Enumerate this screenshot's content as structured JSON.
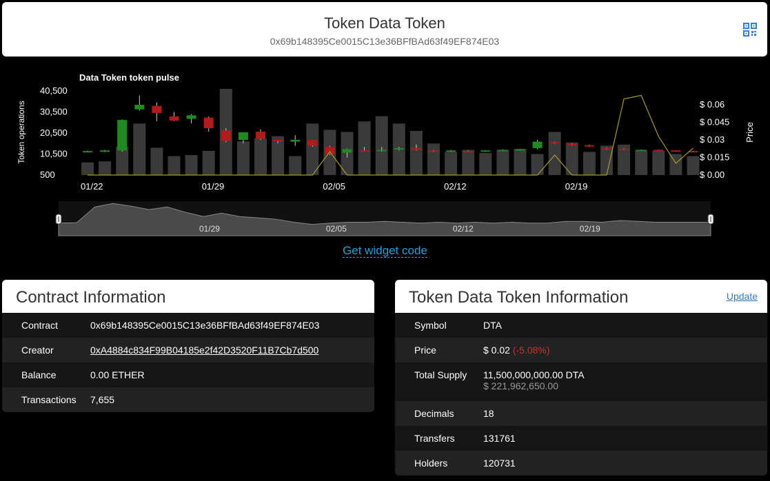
{
  "header": {
    "title": "Token Data Token",
    "address": "0x69b148395Ce0015C13e36BFfBAd63f49EF874E03"
  },
  "widget_link": "Get widget code",
  "contract_panel": {
    "title": "Contract Information",
    "rows": [
      {
        "label": "Contract",
        "value": "0x69b148395Ce0015C13e36BFfBAd63f49EF874E03"
      },
      {
        "label": "Creator",
        "value": "0xA4884c834F99B04185e2f42D3520F11B7Cb7d500"
      },
      {
        "label": "Balance",
        "value": "0.00 ETHER"
      },
      {
        "label": "Transactions",
        "value": "7,655"
      }
    ]
  },
  "token_panel": {
    "title": "Token Data Token Information",
    "update_label": "Update",
    "symbol_label": "Symbol",
    "symbol": "DTA",
    "price_label": "Price",
    "price": "$ 0.02",
    "price_change": "(-5.08%)",
    "supply_label": "Total Supply",
    "supply": "11,500,000,000.00 DTA",
    "supply_usd": "$ 221,962,650.00",
    "decimals_label": "Decimals",
    "decimals": "18",
    "transfers_label": "Transfers",
    "transfers": "131761",
    "holders_label": "Holders",
    "holders": "120731"
  },
  "colors": {
    "up": "#1f8a1f",
    "down": "#b31b1b",
    "volume": "#3a3a3a",
    "price_line": "#a89a2c",
    "link": "#2a9fd6"
  },
  "chart_data": {
    "type": "bar",
    "title": "Data Token token pulse",
    "ylabel": "Token operations",
    "y2label": "Price",
    "ylim": [
      500,
      40500
    ],
    "y_ticks": [
      "40,500",
      "30,500",
      "20,500",
      "10,500",
      "500"
    ],
    "y2lim": [
      0,
      0.07
    ],
    "y2_ticks": [
      "$ 0.06",
      "$ 0.045",
      "$ 0.03",
      "$ 0.015",
      "$ 0.00"
    ],
    "x_ticks": [
      {
        "label": "01/22",
        "index": 0
      },
      {
        "label": "01/29",
        "index": 7
      },
      {
        "label": "02/05",
        "index": 14
      },
      {
        "label": "02/12",
        "index": 21
      },
      {
        "label": "02/19",
        "index": 28
      }
    ],
    "navigator_ticks": [
      {
        "label": "01/29",
        "index": 7
      },
      {
        "label": "02/05",
        "index": 14
      },
      {
        "label": "02/12",
        "index": 21
      },
      {
        "label": "02/19",
        "index": 28
      }
    ],
    "operations": [
      6500,
      7000,
      14000,
      25000,
      13500,
      9500,
      10000,
      12000,
      41500,
      16500,
      18000,
      19000,
      9500,
      25000,
      22000,
      21000,
      26000,
      28500,
      25000,
      21500,
      15500,
      11500,
      12500,
      11000,
      12500,
      13000,
      10500,
      21000,
      16000,
      11500,
      14500,
      15000,
      12500,
      12000,
      10500,
      9500
    ],
    "candles": [
      {
        "o": 0.02,
        "c": 0.0205,
        "h": 0.0208,
        "l": 0.0198
      },
      {
        "o": 0.02,
        "c": 0.021,
        "h": 0.0215,
        "l": 0.0195
      },
      {
        "o": 0.021,
        "c": 0.047,
        "h": 0.0475,
        "l": 0.02
      },
      {
        "o": 0.056,
        "c": 0.06,
        "h": 0.068,
        "l": 0.055
      },
      {
        "o": 0.059,
        "c": 0.053,
        "h": 0.062,
        "l": 0.046
      },
      {
        "o": 0.05,
        "c": 0.0465,
        "h": 0.054,
        "l": 0.046
      },
      {
        "o": 0.048,
        "c": 0.051,
        "h": 0.052,
        "l": 0.044
      },
      {
        "o": 0.049,
        "c": 0.04,
        "h": 0.05,
        "l": 0.037
      },
      {
        "o": 0.038,
        "c": 0.029,
        "h": 0.04,
        "l": 0.028
      },
      {
        "o": 0.03,
        "c": 0.0365,
        "h": 0.0365,
        "l": 0.027
      },
      {
        "o": 0.037,
        "c": 0.031,
        "h": 0.039,
        "l": 0.03
      },
      {
        "o": 0.03,
        "c": 0.029,
        "h": 0.03,
        "l": 0.027
      },
      {
        "o": 0.0285,
        "c": 0.03,
        "h": 0.034,
        "l": 0.025
      },
      {
        "o": 0.03,
        "c": 0.025,
        "h": 0.03,
        "l": 0.024
      },
      {
        "o": 0.024,
        "c": 0.018,
        "h": 0.025,
        "l": 0.017
      },
      {
        "o": 0.019,
        "c": 0.022,
        "h": 0.0225,
        "l": 0.015
      },
      {
        "o": 0.021,
        "c": 0.0205,
        "h": 0.024,
        "l": 0.02
      },
      {
        "o": 0.0205,
        "c": 0.0215,
        "h": 0.024,
        "l": 0.02
      },
      {
        "o": 0.022,
        "c": 0.023,
        "h": 0.024,
        "l": 0.021
      },
      {
        "o": 0.023,
        "c": 0.0215,
        "h": 0.026,
        "l": 0.021
      },
      {
        "o": 0.021,
        "c": 0.02,
        "h": 0.0215,
        "l": 0.0195
      },
      {
        "o": 0.02,
        "c": 0.021,
        "h": 0.0215,
        "l": 0.0195
      },
      {
        "o": 0.0205,
        "c": 0.02,
        "h": 0.021,
        "l": 0.0195
      },
      {
        "o": 0.0205,
        "c": 0.021,
        "h": 0.0212,
        "l": 0.0202
      },
      {
        "o": 0.021,
        "c": 0.0215,
        "h": 0.022,
        "l": 0.0205
      },
      {
        "o": 0.0215,
        "c": 0.022,
        "h": 0.0222,
        "l": 0.021
      },
      {
        "o": 0.023,
        "c": 0.0285,
        "h": 0.03,
        "l": 0.022
      },
      {
        "o": 0.028,
        "c": 0.027,
        "h": 0.0285,
        "l": 0.0265
      },
      {
        "o": 0.0265,
        "c": 0.0255,
        "h": 0.027,
        "l": 0.025
      },
      {
        "o": 0.0255,
        "c": 0.0245,
        "h": 0.026,
        "l": 0.024
      },
      {
        "o": 0.023,
        "c": 0.022,
        "h": 0.0235,
        "l": 0.0215
      },
      {
        "o": 0.0225,
        "c": 0.0215,
        "h": 0.023,
        "l": 0.021
      },
      {
        "o": 0.021,
        "c": 0.0215,
        "h": 0.0218,
        "l": 0.0205
      },
      {
        "o": 0.0215,
        "c": 0.021,
        "h": 0.0218,
        "l": 0.0205
      },
      {
        "o": 0.021,
        "c": 0.0205,
        "h": 0.0212,
        "l": 0.02
      },
      {
        "o": 0.0205,
        "c": 0.02,
        "h": 0.0208,
        "l": 0.0198
      }
    ],
    "price_line": [
      0.0,
      0.0,
      0.0,
      0.0,
      0.0,
      0.0,
      0.0,
      0.0,
      0.0,
      0.0,
      0.0,
      0.0,
      0.0,
      0.0,
      0.02,
      0.0,
      0.0,
      0.0,
      0.0,
      0.0,
      0.0,
      0.0,
      0.0,
      0.0,
      0.0,
      0.0,
      0.0,
      0.017,
      0.0,
      0.0,
      0.0,
      0.065,
      0.068,
      0.033,
      0.01,
      0.023
    ],
    "navigator_series": [
      6500,
      7000,
      25000,
      29000,
      26000,
      22000,
      25000,
      19000,
      14000,
      18000,
      14000,
      12500,
      11000,
      7500,
      5000,
      6500,
      7500,
      7500,
      8500,
      7500,
      6500,
      7500,
      6500,
      7500,
      6500,
      7500,
      6500,
      6500,
      8500,
      8500,
      7500,
      9500,
      8500,
      7500,
      7500,
      7500,
      7500
    ]
  }
}
